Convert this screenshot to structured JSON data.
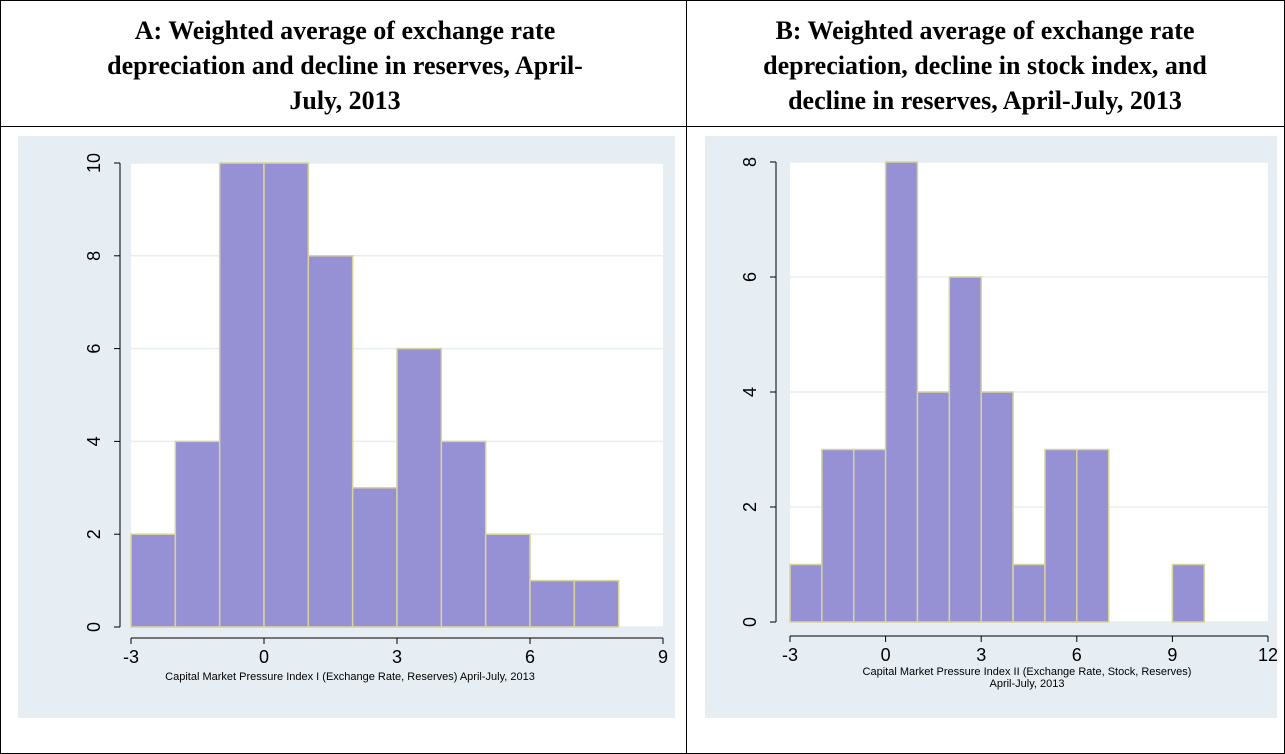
{
  "panels": {
    "a": {
      "heading_lines": [
        "A: Weighted average of exchange rate",
        "depreciation and decline in reserves, April-",
        "July, 2013"
      ]
    },
    "b": {
      "heading_lines": [
        "B: Weighted average of exchange rate",
        "depreciation, decline in stock index, and",
        "decline in reserves, April-July, 2013"
      ]
    }
  },
  "colors": {
    "bar_fill": "#9691d4",
    "bar_stroke": "#d8d39a",
    "panel_bg": "#e7eef3",
    "grid": "#e6eef2"
  },
  "chart_data": [
    {
      "type": "bar",
      "xlabel": [
        "Capital Market Pressure Index I (Exchange Rate, Reserves) April-July, 2013"
      ],
      "ylabel": "",
      "xlim": [
        -3,
        9
      ],
      "ylim": [
        0,
        10
      ],
      "xticks": [
        -3,
        0,
        3,
        6,
        9
      ],
      "yticks": [
        0,
        2,
        4,
        6,
        8,
        10
      ],
      "grid": true,
      "bins": [
        {
          "x0": -3,
          "x1": -2,
          "value": 2
        },
        {
          "x0": -2,
          "x1": -1,
          "value": 4
        },
        {
          "x0": -1,
          "x1": 0,
          "value": 10
        },
        {
          "x0": 0,
          "x1": 1,
          "value": 10
        },
        {
          "x0": 1,
          "x1": 2,
          "value": 8
        },
        {
          "x0": 2,
          "x1": 3,
          "value": 3
        },
        {
          "x0": 3,
          "x1": 4,
          "value": 6
        },
        {
          "x0": 4,
          "x1": 5,
          "value": 4
        },
        {
          "x0": 5,
          "x1": 6,
          "value": 2
        },
        {
          "x0": 6,
          "x1": 7,
          "value": 1
        },
        {
          "x0": 7,
          "x1": 8,
          "value": 1
        }
      ]
    },
    {
      "type": "bar",
      "xlabel": [
        "Capital Market Pressure Index II (Exchange Rate, Stock, Reserves)",
        "April-July, 2013"
      ],
      "ylabel": "",
      "xlim": [
        -3,
        12
      ],
      "ylim": [
        0,
        8
      ],
      "xticks": [
        -3,
        0,
        3,
        6,
        9,
        12
      ],
      "yticks": [
        0,
        2,
        4,
        6,
        8
      ],
      "grid": true,
      "bins": [
        {
          "x0": -3,
          "x1": -2,
          "value": 1
        },
        {
          "x0": -2,
          "x1": -1,
          "value": 3
        },
        {
          "x0": -1,
          "x1": 0,
          "value": 3
        },
        {
          "x0": 0,
          "x1": 1,
          "value": 8
        },
        {
          "x0": 1,
          "x1": 2,
          "value": 4
        },
        {
          "x0": 2,
          "x1": 3,
          "value": 6
        },
        {
          "x0": 3,
          "x1": 4,
          "value": 4
        },
        {
          "x0": 4,
          "x1": 5,
          "value": 1
        },
        {
          "x0": 5,
          "x1": 6,
          "value": 3
        },
        {
          "x0": 6,
          "x1": 7,
          "value": 3
        },
        {
          "x0": 9,
          "x1": 10,
          "value": 1
        }
      ]
    }
  ]
}
